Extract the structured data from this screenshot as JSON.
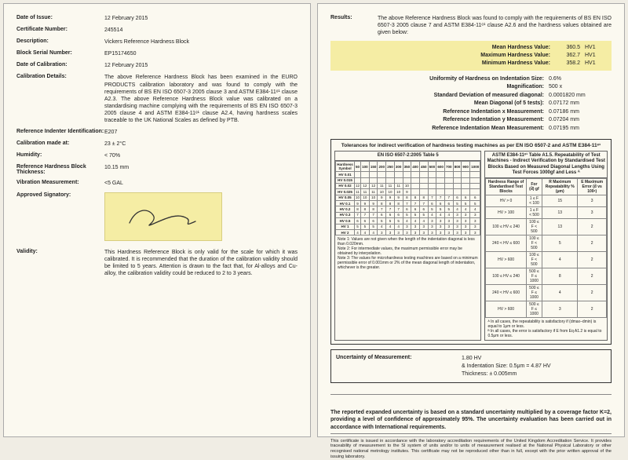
{
  "left": {
    "issue": {
      "label": "Date of Issue:",
      "value": "12 February 2015"
    },
    "certno": {
      "label": "Certificate Number:",
      "value": "245514"
    },
    "desc": {
      "label": "Description:",
      "value": "Vickers Reference Hardness Block"
    },
    "serial": {
      "label": "Block Serial Number:",
      "value": "EP15174650"
    },
    "caldate": {
      "label": "Date of Calibration:",
      "value": "12 February 2015"
    },
    "caldet": {
      "label": "Calibration Details:",
      "value": "The above Reference Hardness Block has been examined in the EURO PRODUCTS calibration laboratory and was found to comply with the requirements of BS EN ISO 6507-3 2005 clause 3 and ASTM E384-11ᵉ¹ clause A2.3. The above Reference Hardness Block value was calibrated on a standardising machine complying with the requirements of BS EN ISO 6507-3 2005 clause 4 and ASTM E384-11ᵉ¹ clause A2.4, having hardness scales traceable to the UK National Scales as defined by PTB."
    },
    "indenter": {
      "label": "Reference Indenter Identification:",
      "value": "E207"
    },
    "calat": {
      "label": "Calibration made at:",
      "value": "23 ± 2°C"
    },
    "humid": {
      "label": "Humidity:",
      "value": "< 70%"
    },
    "thick": {
      "label": "Reference Hardness Block Thickness:",
      "value": "10.15 mm"
    },
    "vib": {
      "label": "Vibration Measurement:",
      "value": "<5 GAL"
    },
    "sig": {
      "label": "Approved Signatory:"
    },
    "valid": {
      "label": "Validity:",
      "value": "This Hardness Reference Block is only valid for the scale for which it was calibrated. It is recommended that the duration of the calibration validity should be limited to 5 years. Attention is drawn to the fact that, for Al-alloys and Cu-alloy, the calibration validity could be reduced to 2 to 3 years."
    }
  },
  "right": {
    "results": {
      "label": "Results:",
      "value": "The above Reference Hardness Block was found to comply with the requirements of BS EN ISO 6507-3 2005 clause 7 and ASTM E384-11ᵉ¹ clause A2.6 and the hardness values obtained are given below:"
    },
    "hl": [
      {
        "k": "Mean Hardness Value:",
        "v1": "360.5",
        "v2": "HV1"
      },
      {
        "k": "Maximum Hardness Value:",
        "v1": "362.7",
        "v2": "HV1"
      },
      {
        "k": "Minimum Hardness Value:",
        "v1": "358.2",
        "v2": "HV1"
      }
    ],
    "metrics": [
      {
        "k": "Uniformity of Hardness on Indentation Size:",
        "v": "0.6%"
      },
      {
        "k": "Magnification:",
        "v": "500 x"
      },
      {
        "k": "Standard Deviation of measured diagonal:",
        "v": "0.0001820 mm"
      },
      {
        "k": "Mean Diagonal (of 5 tests):",
        "v": "0.07172 mm"
      },
      {
        "k": "Reference Indentation x Measurement:",
        "v": "0.07186 mm"
      },
      {
        "k": "Reference Indentation y Measurement:",
        "v": "0.07204 mm"
      },
      {
        "k": "Reference Indentation Mean Measurement:",
        "v": "0.07195 mm"
      }
    ],
    "tol_title": "Tolerances for indirect verification of hardness testing machines as per EN ISO 6507-2 and ASTM E384-11ᵉ¹",
    "tol_left_head": "EN ISO 6507-2:2005 Table 5",
    "tol_left_sub": "Max product deviation as percentage of diagonal",
    "tol_left_rows": [
      "HV 0.01",
      "HV 0.015",
      "HV 0.02",
      "HV 0.025",
      "HV 0.05",
      "HV 0.1",
      "HV 0.2",
      "HV 0.3",
      "HV 0.5",
      "HV 1",
      "HV 2"
    ],
    "tol_left_cols": [
      "50",
      "100",
      "150",
      "200",
      "250",
      "300",
      "350",
      "400",
      "450",
      "500",
      "600",
      "700",
      "800",
      "900",
      "1000"
    ],
    "tol_notes": "Note 1: Values are not given when the length of the indentation diagonal is less than 0.020mm.\nNote 2: For intermediate values, the maximum permissible error may be obtained by interpolation.\nNote 3: The values for microhardness testing machines are based on a minimum permissible error of 0.001mm or 2% of the mean diagonal length of indentation, whichever is the greater.",
    "tol_right_head": "ASTM E384-11ᵉ¹ Table A1.5. Repeatability of Test Machines - Indirect Verification by Standardised Test Blocks Based on Measured Diagonal Lengths Using Test Forces 1000gf and Less ᴬ",
    "tol_right_cols": [
      "Hardness Range of Standardised Test Blocks",
      "For (d̄) gf",
      "R Maximum Repeatability % (μm)",
      "E Maximum Error (d̄ vs 100ᵃ)"
    ],
    "tol_right_rows": [
      [
        "HV > 0",
        "1 ≤ F < 100",
        "15",
        "3"
      ],
      [
        "HV > 100",
        "1 ≤ F < 500",
        "13",
        "3"
      ],
      [
        "100 ≤ HV ≤ 240",
        "100 ≤ F < 500",
        "13",
        "2"
      ],
      [
        "240 < HV ≤ 600",
        "100 ≤ F < 500",
        "5",
        "2"
      ],
      [
        "HV > 600",
        "100 ≤ F < 500",
        "4",
        "2"
      ],
      [
        "100 ≤ HV ≤ 240",
        "500 ≤ F ≤ 1000",
        "8",
        "2"
      ],
      [
        "240 < HV ≤ 600",
        "500 ≤ F ≤ 1000",
        "4",
        "2"
      ],
      [
        "HV > 600",
        "500 ≤ F ≤ 1000",
        "3",
        "2"
      ]
    ],
    "tol_right_notes": "ᴬ In all cases, the repeatability is satisfactory if (dmax–dmin) is equal to 1μm or less.\nᴮ In all cases, the error is satisfactory if E from Eq A1.2 is equal to 0.5μm or less.",
    "unc": {
      "label": "Uncertainty of Measurement:",
      "v1": "1.80 HV",
      "v2": "& Indentation Size: 0.5μm = 4.87 HV",
      "v3": "Thickness:  ± 0.005mm"
    },
    "footer_bold": "The reported expanded uncertainty is based on a standard uncertainty multiplied by a coverage factor K=2, providing a level of confidence of approximately 95%. The uncertainty evaluation has been carried out in accordance with International requirements.",
    "footer_small": "This certificate is issued in accordance with the laboratory accreditation requirements of the United Kingdom Accreditation Service. It provides traceability of measurement to the SI system of units and/or to units of measurement realised at the National Physical Laboratory or other recognised national metrology institutes. This certificate may not be reproduced other than in full, except with the prior written approval of the issuing laboratory."
  },
  "colors": {
    "highlight": "#f5eda4",
    "page_bg": "#fbf9f0",
    "body_bg": "#f0ede4",
    "border": "#333333"
  }
}
